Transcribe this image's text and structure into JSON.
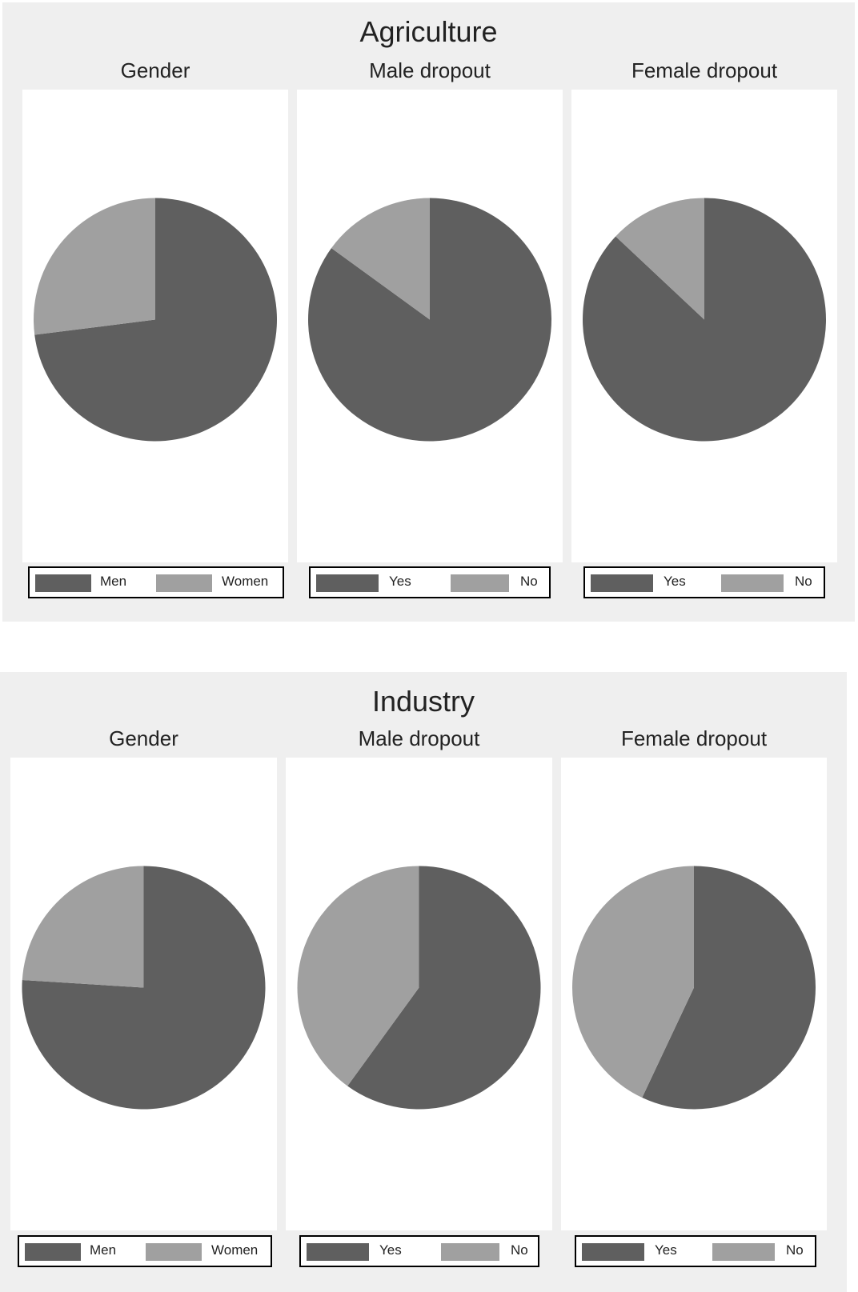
{
  "colors": {
    "dark": "#5f5f5f",
    "light": "#a0a0a0",
    "panel_bg": "#efefef",
    "plot_bg": "#ffffff"
  },
  "groups": [
    {
      "title": "Agriculture",
      "panels": [
        {
          "title": "Gender",
          "legend": [
            "Men",
            "Women"
          ]
        },
        {
          "title": "Male dropout",
          "legend": [
            "Yes",
            "No"
          ]
        },
        {
          "title": "Female dropout",
          "legend": [
            "Yes",
            "No"
          ]
        }
      ]
    },
    {
      "title": "Industry",
      "panels": [
        {
          "title": "Gender",
          "legend": [
            "Men",
            "Women"
          ]
        },
        {
          "title": "Male dropout",
          "legend": [
            "Yes",
            "No"
          ]
        },
        {
          "title": "Female dropout",
          "legend": [
            "Yes",
            "No"
          ]
        }
      ]
    }
  ],
  "chart_data": [
    {
      "type": "pie",
      "group": "Agriculture",
      "title": "Gender",
      "categories": [
        "Men",
        "Women"
      ],
      "values": [
        73,
        27
      ],
      "legend_position": "bottom"
    },
    {
      "type": "pie",
      "group": "Agriculture",
      "title": "Male dropout",
      "categories": [
        "Yes",
        "No"
      ],
      "values": [
        85,
        15
      ],
      "legend_position": "bottom"
    },
    {
      "type": "pie",
      "group": "Agriculture",
      "title": "Female dropout",
      "categories": [
        "Yes",
        "No"
      ],
      "values": [
        87,
        13
      ],
      "legend_position": "bottom"
    },
    {
      "type": "pie",
      "group": "Industry",
      "title": "Gender",
      "categories": [
        "Men",
        "Women"
      ],
      "values": [
        76,
        24
      ],
      "legend_position": "bottom"
    },
    {
      "type": "pie",
      "group": "Industry",
      "title": "Male dropout",
      "categories": [
        "Yes",
        "No"
      ],
      "values": [
        60,
        40
      ],
      "legend_position": "bottom"
    },
    {
      "type": "pie",
      "group": "Industry",
      "title": "Female dropout",
      "categories": [
        "Yes",
        "No"
      ],
      "values": [
        57,
        43
      ],
      "legend_position": "bottom"
    }
  ]
}
